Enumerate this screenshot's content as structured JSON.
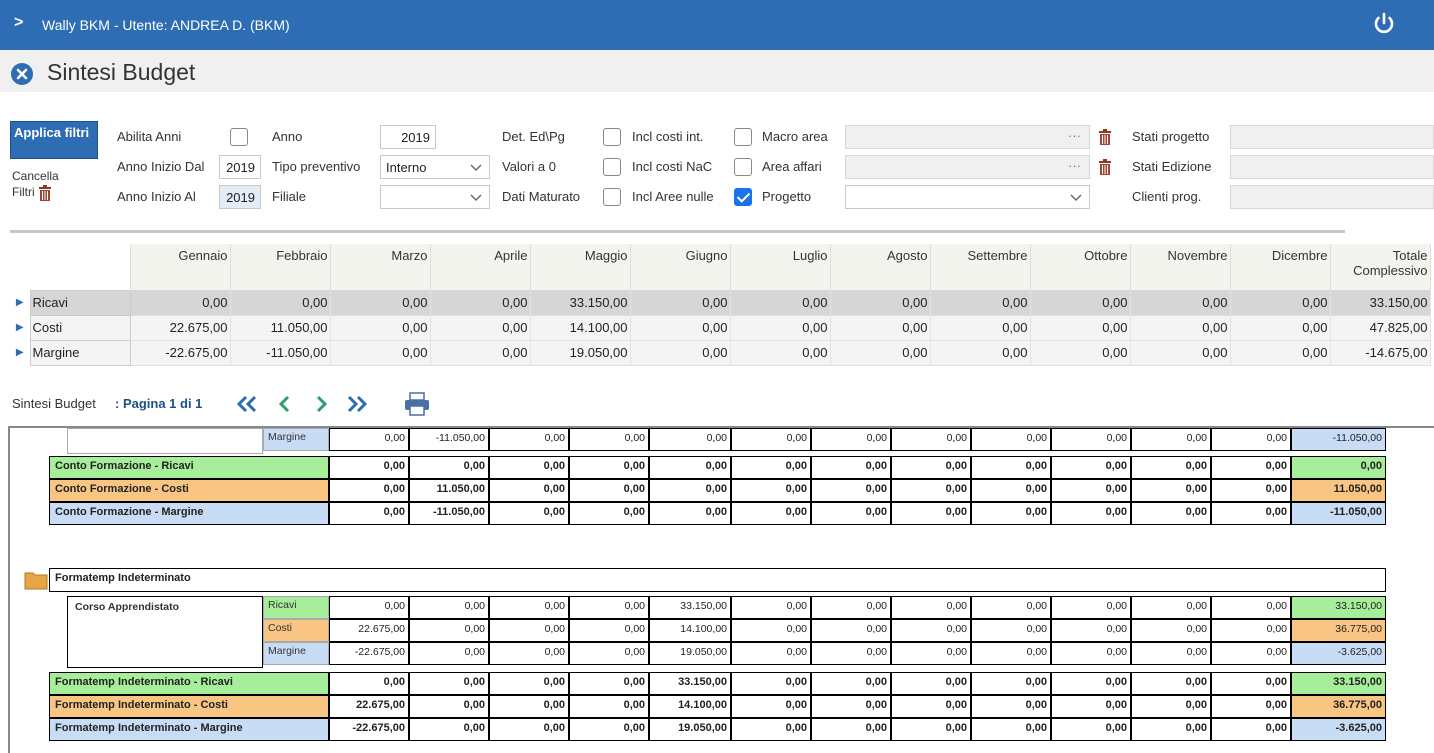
{
  "app": {
    "title": "Wally BKM - Utente: ANDREA D. (BKM)"
  },
  "page": {
    "title": "Sintesi Budget"
  },
  "filters": {
    "apply": "Applica filtri",
    "cancel_line1": "Cancella",
    "cancel_line2": "Filtri",
    "abilita_anni": "Abilita Anni",
    "anno_inizio_dal": "Anno Inizio Dal",
    "anno_inizio_dal_val": "2019",
    "anno_inizio_al": "Anno Inizio Al",
    "anno_inizio_al_val": "2019",
    "anno": "Anno",
    "anno_val": "2019",
    "tipo_preventivo": "Tipo preventivo",
    "tipo_preventivo_val": "Interno",
    "filiale": "Filiale",
    "filiale_val": "",
    "det_ed_pg": "Det. Ed\\Pg",
    "valori_a_0": "Valori a 0",
    "dati_maturato": "Dati Maturato",
    "incl_costi_int": "Incl costi int.",
    "incl_costi_nac": "Incl costi NaC",
    "incl_aree_nulle": "Incl Aree nulle",
    "macro_area": "Macro area",
    "area_affari": "Area affari",
    "progetto": "Progetto",
    "stati_progetto": "Stati progetto",
    "stati_edizione": "Stati Edizione",
    "clienti_prog": "Clienti prog."
  },
  "summary": {
    "columns": [
      "Gennaio",
      "Febbraio",
      "Marzo",
      "Aprile",
      "Maggio",
      "Giugno",
      "Luglio",
      "Agosto",
      "Settembre",
      "Ottobre",
      "Novembre",
      "Dicembre",
      "Totale Complessivo"
    ],
    "rows": [
      {
        "name": "Ricavi",
        "values": [
          "0,00",
          "0,00",
          "0,00",
          "0,00",
          "33.150,00",
          "0,00",
          "0,00",
          "0,00",
          "0,00",
          "0,00",
          "0,00",
          "0,00",
          "33.150,00"
        ]
      },
      {
        "name": "Costi",
        "values": [
          "22.675,00",
          "11.050,00",
          "0,00",
          "0,00",
          "14.100,00",
          "0,00",
          "0,00",
          "0,00",
          "0,00",
          "0,00",
          "0,00",
          "0,00",
          "47.825,00"
        ]
      },
      {
        "name": "Margine",
        "values": [
          "-22.675,00",
          "-11.050,00",
          "0,00",
          "0,00",
          "19.050,00",
          "0,00",
          "0,00",
          "0,00",
          "0,00",
          "0,00",
          "0,00",
          "0,00",
          "-14.675,00"
        ]
      }
    ]
  },
  "pager": {
    "label": "Sintesi Budget",
    "page": ": Pagina 1 di 1"
  },
  "report": {
    "partial_row": {
      "label": "Margine",
      "values": [
        "0,00",
        "-11.050,00",
        "0,00",
        "0,00",
        "0,00",
        "0,00",
        "0,00",
        "0,00",
        "0,00",
        "0,00",
        "0,00",
        "0,00",
        "-11.050,00"
      ]
    },
    "conto_totals": [
      {
        "label": "Conto Formazione - Ricavi",
        "values": [
          "0,00",
          "0,00",
          "0,00",
          "0,00",
          "0,00",
          "0,00",
          "0,00",
          "0,00",
          "0,00",
          "0,00",
          "0,00",
          "0,00",
          "0,00"
        ]
      },
      {
        "label": "Conto Formazione - Costi",
        "values": [
          "0,00",
          "11.050,00",
          "0,00",
          "0,00",
          "0,00",
          "0,00",
          "0,00",
          "0,00",
          "0,00",
          "0,00",
          "0,00",
          "0,00",
          "11.050,00"
        ]
      },
      {
        "label": "Conto Formazione - Margine",
        "values": [
          "0,00",
          "-11.050,00",
          "0,00",
          "0,00",
          "0,00",
          "0,00",
          "0,00",
          "0,00",
          "0,00",
          "0,00",
          "0,00",
          "0,00",
          "-11.050,00"
        ]
      }
    ],
    "group_title": "Formatemp Indeterminato",
    "project": "Corso Apprendistato",
    "project_rows": [
      {
        "label": "Ricavi",
        "values": [
          "0,00",
          "0,00",
          "0,00",
          "0,00",
          "33.150,00",
          "0,00",
          "0,00",
          "0,00",
          "0,00",
          "0,00",
          "0,00",
          "0,00",
          "33.150,00"
        ]
      },
      {
        "label": "Costi",
        "values": [
          "22.675,00",
          "0,00",
          "0,00",
          "0,00",
          "14.100,00",
          "0,00",
          "0,00",
          "0,00",
          "0,00",
          "0,00",
          "0,00",
          "0,00",
          "36.775,00"
        ]
      },
      {
        "label": "Margine",
        "values": [
          "-22.675,00",
          "0,00",
          "0,00",
          "0,00",
          "19.050,00",
          "0,00",
          "0,00",
          "0,00",
          "0,00",
          "0,00",
          "0,00",
          "0,00",
          "-3.625,00"
        ]
      }
    ],
    "group_totals": [
      {
        "label": "Formatemp Indeterminato - Ricavi",
        "values": [
          "0,00",
          "0,00",
          "0,00",
          "0,00",
          "33.150,00",
          "0,00",
          "0,00",
          "0,00",
          "0,00",
          "0,00",
          "0,00",
          "0,00",
          "33.150,00"
        ]
      },
      {
        "label": "Formatemp Indeterminato - Costi",
        "values": [
          "22.675,00",
          "0,00",
          "0,00",
          "0,00",
          "14.100,00",
          "0,00",
          "0,00",
          "0,00",
          "0,00",
          "0,00",
          "0,00",
          "0,00",
          "36.775,00"
        ]
      },
      {
        "label": "Formatemp Indeterminato - Margine",
        "values": [
          "-22.675,00",
          "0,00",
          "0,00",
          "0,00",
          "19.050,00",
          "0,00",
          "0,00",
          "0,00",
          "0,00",
          "0,00",
          "0,00",
          "0,00",
          "-3.625,00"
        ]
      }
    ]
  }
}
